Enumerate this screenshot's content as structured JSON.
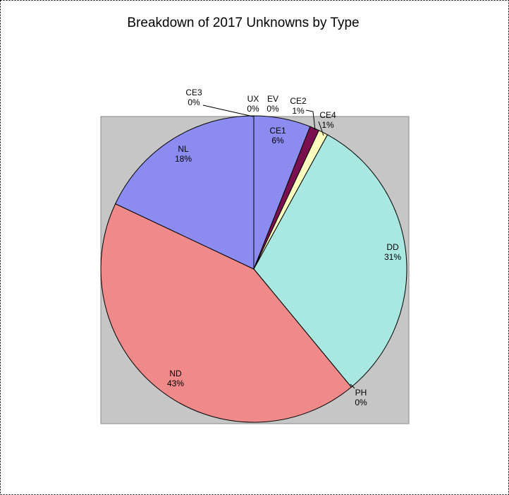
{
  "chart_data": {
    "type": "pie",
    "title": "Breakdown of 2017 Unknowns by Type",
    "categories": [
      "UX",
      "EV",
      "CE1",
      "CE2",
      "CE4",
      "DD",
      "PH",
      "ND",
      "NL",
      "CE3"
    ],
    "values": [
      0,
      0,
      6,
      1,
      1,
      31,
      0,
      43,
      18,
      0
    ],
    "value_labels": [
      "0%",
      "0%",
      "6%",
      "1%",
      "1%",
      "31%",
      "0%",
      "43%",
      "18%",
      "0%"
    ],
    "colors": [
      "#9999ff",
      "#9999ff",
      "#8c8cf0",
      "#7a1050",
      "#ffffc0",
      "#a8e8e0",
      "#ffffff",
      "#f08a8a",
      "#8c8cf0",
      "#9999ff"
    ]
  }
}
